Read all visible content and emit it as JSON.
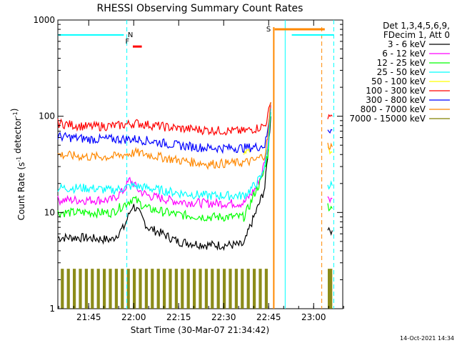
{
  "chart_data": {
    "type": "line",
    "title": "RHESSI Observing Summary Count Rates",
    "xlabel": "Start Time (30-Mar-07 21:34:42)",
    "ylabel_main": "Count Rate (s",
    "ylabel_sup1": "-1",
    "ylabel_mid": " detector",
    "ylabel_sup2": "-1",
    "ylabel_end": ")",
    "yscale": "log",
    "ylim": [
      1,
      1000
    ],
    "xlim_minutes": [
      0,
      95
    ],
    "y_ticks": [
      {
        "value": 1,
        "label": "1"
      },
      {
        "value": 10,
        "label": "10"
      },
      {
        "value": 100,
        "label": "100"
      },
      {
        "value": 1000,
        "label": "1000"
      }
    ],
    "x_ticks": [
      {
        "minute": 10.3,
        "label": "21:45"
      },
      {
        "minute": 25.3,
        "label": "22:00"
      },
      {
        "minute": 40.3,
        "label": "22:15"
      },
      {
        "minute": 55.3,
        "label": "22:30"
      },
      {
        "minute": 70.3,
        "label": "22:45"
      },
      {
        "minute": 85.3,
        "label": "23:00"
      }
    ],
    "legend_header": [
      "Det 1,3,4,5,6,9,",
      "FDecim 1, Att 0"
    ],
    "series": [
      {
        "name": "3 - 6 keV",
        "color": "#000000",
        "points": [
          [
            0,
            5.5
          ],
          [
            8,
            5.5
          ],
          [
            18,
            5.2
          ],
          [
            22,
            7
          ],
          [
            25,
            12
          ],
          [
            27,
            10
          ],
          [
            30,
            7
          ],
          [
            35,
            6
          ],
          [
            40,
            5
          ],
          [
            50,
            4.6
          ],
          [
            60,
            4.6
          ],
          [
            62,
            4.6
          ],
          [
            64,
            7
          ],
          [
            66,
            10
          ],
          [
            67,
            12
          ],
          [
            69,
            18
          ],
          [
            70,
            40
          ],
          [
            71,
            100
          ]
        ],
        "points2": [
          [
            90,
            7
          ],
          [
            91.5,
            6.5
          ]
        ]
      },
      {
        "name": "6 - 12 keV",
        "color": "#ff00ff",
        "points": [
          [
            0,
            13.5
          ],
          [
            10,
            13.5
          ],
          [
            18,
            13.5
          ],
          [
            22,
            17
          ],
          [
            24,
            22
          ],
          [
            27,
            17
          ],
          [
            30,
            15
          ],
          [
            40,
            13
          ],
          [
            50,
            12.5
          ],
          [
            60,
            12.5
          ],
          [
            62,
            12.5
          ],
          [
            64,
            15
          ],
          [
            66,
            18
          ],
          [
            68,
            25
          ],
          [
            70,
            50
          ],
          [
            71,
            130
          ]
        ],
        "points2": [
          [
            90,
            15
          ],
          [
            91.5,
            14
          ]
        ]
      },
      {
        "name": "12 - 25 keV",
        "color": "#00ff00",
        "points": [
          [
            0,
            10
          ],
          [
            8,
            10
          ],
          [
            18,
            10
          ],
          [
            22,
            12
          ],
          [
            25,
            14
          ],
          [
            30,
            11
          ],
          [
            40,
            9.5
          ],
          [
            50,
            9
          ],
          [
            60,
            9
          ],
          [
            62,
            9
          ],
          [
            64,
            12
          ],
          [
            66,
            17
          ],
          [
            68,
            22
          ],
          [
            70,
            40
          ],
          [
            71,
            110
          ]
        ],
        "points2": [
          [
            90,
            12
          ],
          [
            91.5,
            11
          ]
        ]
      },
      {
        "name": "25 - 50 keV",
        "color": "#00ffff",
        "points": [
          [
            0,
            18
          ],
          [
            10,
            18
          ],
          [
            18,
            17
          ],
          [
            22,
            18
          ],
          [
            25,
            19
          ],
          [
            30,
            18
          ],
          [
            40,
            16
          ],
          [
            50,
            15
          ],
          [
            60,
            15
          ],
          [
            62,
            15
          ],
          [
            64,
            17
          ],
          [
            66,
            20
          ],
          [
            68,
            24
          ],
          [
            70,
            45
          ],
          [
            71,
            120
          ]
        ],
        "points2": [
          [
            90,
            20
          ],
          [
            91.5,
            19
          ]
        ]
      },
      {
        "name": "50 - 100 keV",
        "color": "#ffff00",
        "points": [
          [
            62,
            40
          ],
          [
            64,
            42
          ]
        ],
        "points2": [
          [
            90,
            45
          ],
          [
            91.5,
            42
          ]
        ]
      },
      {
        "name": "100 - 300 keV",
        "color": "#ff0000",
        "points": [
          [
            0,
            85
          ],
          [
            10,
            78
          ],
          [
            20,
            80
          ],
          [
            26,
            85
          ],
          [
            30,
            82
          ],
          [
            40,
            75
          ],
          [
            50,
            72
          ],
          [
            62,
            70
          ],
          [
            66,
            75
          ],
          [
            69,
            80
          ],
          [
            70,
            100
          ],
          [
            71,
            140
          ]
        ],
        "points2": [
          [
            90,
            105
          ],
          [
            91.5,
            100
          ]
        ]
      },
      {
        "name": "300 - 800 keV",
        "color": "#0000ff",
        "points": [
          [
            0,
            62
          ],
          [
            10,
            58
          ],
          [
            20,
            58
          ],
          [
            26,
            58
          ],
          [
            30,
            56
          ],
          [
            40,
            50
          ],
          [
            50,
            47
          ],
          [
            62,
            47
          ],
          [
            66,
            48
          ],
          [
            69,
            50
          ],
          [
            70,
            70
          ],
          [
            71,
            140
          ]
        ],
        "points2": [
          [
            90,
            75
          ],
          [
            91.5,
            72
          ]
        ]
      },
      {
        "name": "800 - 7000 keV",
        "color": "#ff8800",
        "points": [
          [
            0,
            40
          ],
          [
            10,
            38
          ],
          [
            18,
            38
          ],
          [
            26,
            42
          ],
          [
            30,
            40
          ],
          [
            40,
            35
          ],
          [
            50,
            32
          ],
          [
            62,
            33
          ],
          [
            66,
            35
          ],
          [
            69,
            40
          ],
          [
            70,
            60
          ],
          [
            71,
            140
          ]
        ],
        "points2": [
          [
            90,
            50
          ],
          [
            91.5,
            48
          ]
        ]
      },
      {
        "name": "7000 - 15000 keV",
        "color": "#808000",
        "points": [],
        "points2": []
      }
    ],
    "olive_bursts": [
      [
        1,
        2
      ],
      [
        3,
        4
      ],
      [
        5,
        6
      ],
      [
        7,
        8
      ],
      [
        9,
        10
      ],
      [
        11,
        12
      ],
      [
        13,
        14
      ],
      [
        15,
        16
      ],
      [
        17,
        18
      ],
      [
        19,
        20
      ],
      [
        21,
        22
      ],
      [
        23,
        24
      ],
      [
        25,
        26
      ],
      [
        27,
        28
      ],
      [
        29,
        30
      ],
      [
        31,
        32
      ],
      [
        33,
        34
      ],
      [
        35,
        36
      ],
      [
        37,
        38
      ],
      [
        39,
        40
      ],
      [
        41,
        42
      ],
      [
        43,
        44
      ],
      [
        45,
        46
      ],
      [
        47,
        48
      ],
      [
        49,
        50
      ],
      [
        51,
        52
      ],
      [
        53,
        54
      ],
      [
        55,
        56
      ],
      [
        57,
        58
      ],
      [
        59,
        60
      ],
      [
        61,
        62
      ],
      [
        63,
        64
      ],
      [
        65,
        66
      ],
      [
        67,
        68
      ],
      [
        69,
        70
      ],
      [
        90,
        91.5
      ]
    ],
    "saa_start": 23,
    "night_start": 75.8,
    "night_end": 91.7,
    "orange_dashed_x": 88,
    "orange_solid_x": 72,
    "cyan_dashed_x1": 23,
    "cyan_dashed_x2": 92,
    "flags": [
      {
        "label": "N",
        "color": "#00ffff"
      },
      {
        "label": "F",
        "color": "#ff0000"
      },
      {
        "label": "S",
        "color": "#ff8800"
      }
    ],
    "cyan_flag_ranges": [
      [
        0,
        22
      ],
      [
        78,
        92
      ]
    ],
    "orange_flag_range": [
      72.3,
      89
    ],
    "red_flag_range": [
      25,
      28
    ],
    "timestamp": "14-Oct-2021 14:34"
  }
}
